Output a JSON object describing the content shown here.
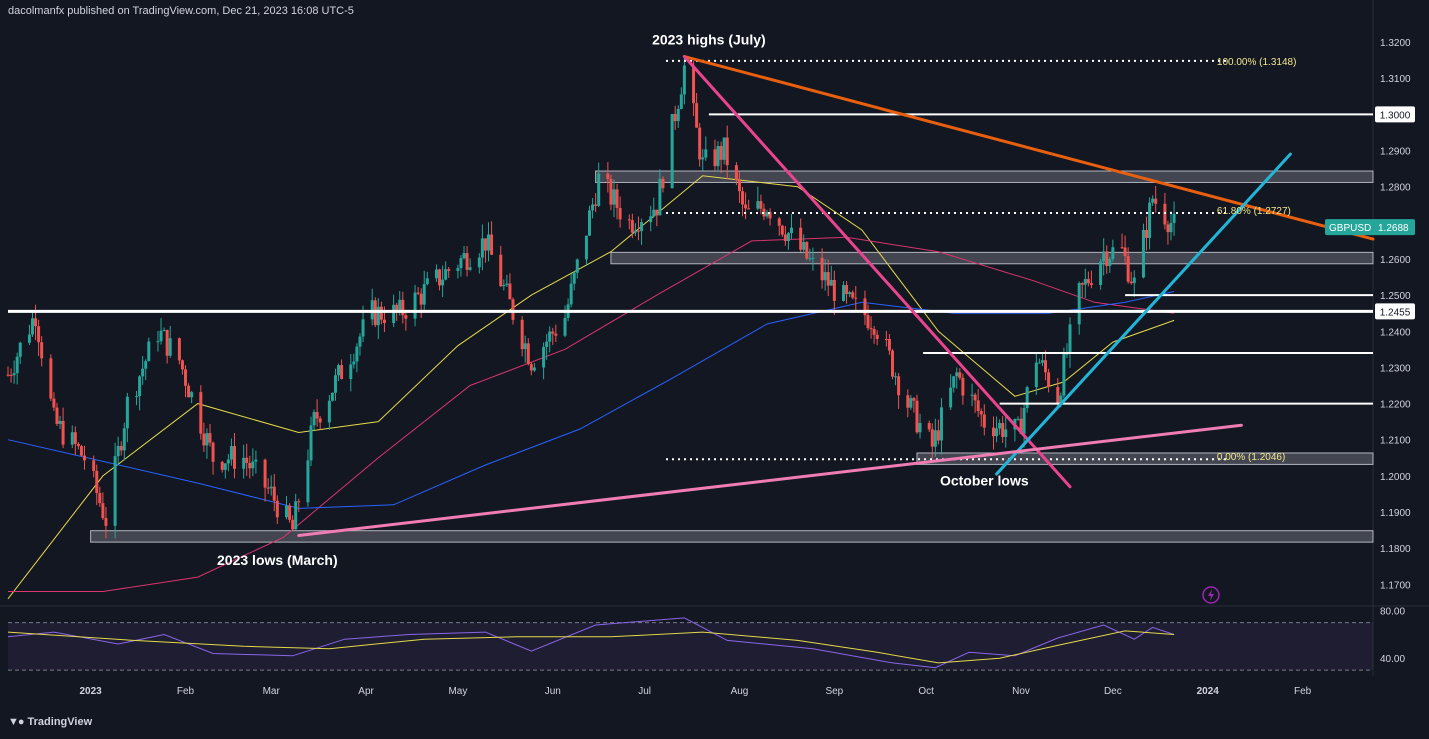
{
  "header": {
    "text": "dacolmanfx published on TradingView.com, Dec 21, 2023 16:08 UTC-5"
  },
  "footer": {
    "logo_text": "TradingView",
    "logo_icon": "tradingview-logo-icon"
  },
  "colors": {
    "background": "#131722",
    "up": "#26a69a",
    "down": "#ef5350",
    "ma50": "#e5d94a",
    "ma100": "#d9356e",
    "ma200": "#2962ff",
    "red_trend": "#e8600f",
    "pink_trend": "#e8458e",
    "blue_trend": "#22b5d8",
    "support_trend": "#f07cb4",
    "rsi": "#8a66e6",
    "rsi_ma": "#e5d94a",
    "fib_text": "#f0e68c"
  },
  "chart_data": {
    "type": "candlestick",
    "symbol": "GBPUSD",
    "last_price": "1.2688",
    "price_axis": {
      "ylim": [
        1.164,
        1.325
      ],
      "ticks": [
        "1.3200",
        "1.3100",
        "1.3000",
        "1.2900",
        "1.2800",
        "1.2700",
        "1.2600",
        "1.2500",
        "1.2455",
        "1.2400",
        "1.2300",
        "1.2200",
        "1.2100",
        "1.2000",
        "1.1900",
        "1.1800",
        "1.1700"
      ]
    },
    "time_axis": {
      "xlim": [
        "2022-12-05",
        "2024-02-24"
      ],
      "ticks": [
        {
          "date": "2023-01-01",
          "label": "2023",
          "bold": true
        },
        {
          "date": "2023-02-01",
          "label": "Feb"
        },
        {
          "date": "2023-03-01",
          "label": "Mar"
        },
        {
          "date": "2023-04-01",
          "label": "Apr"
        },
        {
          "date": "2023-05-01",
          "label": "May"
        },
        {
          "date": "2023-06-01",
          "label": "Jun"
        },
        {
          "date": "2023-07-01",
          "label": "Jul"
        },
        {
          "date": "2023-08-01",
          "label": "Aug"
        },
        {
          "date": "2023-09-01",
          "label": "Sep"
        },
        {
          "date": "2023-10-01",
          "label": "Oct"
        },
        {
          "date": "2023-11-01",
          "label": "Nov"
        },
        {
          "date": "2023-12-01",
          "label": "Dec"
        },
        {
          "date": "2024-01-01",
          "label": "2024",
          "bold": true
        },
        {
          "date": "2024-02-01",
          "label": "Feb"
        }
      ]
    },
    "price_path": [
      [
        "2022-12-05",
        1.228
      ],
      [
        "2022-12-14",
        1.245
      ],
      [
        "2022-12-20",
        1.215
      ],
      [
        "2022-12-30",
        1.205
      ],
      [
        "2023-01-06",
        1.188
      ],
      [
        "2023-01-13",
        1.22
      ],
      [
        "2023-01-23",
        1.24
      ],
      [
        "2023-01-30",
        1.232
      ],
      [
        "2023-02-10",
        1.205
      ],
      [
        "2023-02-20",
        1.205
      ],
      [
        "2023-03-01",
        1.195
      ],
      [
        "2023-03-08",
        1.185
      ],
      [
        "2023-03-15",
        1.215
      ],
      [
        "2023-03-24",
        1.229
      ],
      [
        "2023-04-03",
        1.245
      ],
      [
        "2023-04-12",
        1.245
      ],
      [
        "2023-04-28",
        1.257
      ],
      [
        "2023-05-10",
        1.265
      ],
      [
        "2023-05-25",
        1.232
      ],
      [
        "2023-06-05",
        1.244
      ],
      [
        "2023-06-16",
        1.282
      ],
      [
        "2023-06-26",
        1.27
      ],
      [
        "2023-07-05",
        1.275
      ],
      [
        "2023-07-14",
        1.313
      ],
      [
        "2023-07-20",
        1.286
      ],
      [
        "2023-07-27",
        1.29
      ],
      [
        "2023-08-03",
        1.272
      ],
      [
        "2023-08-10",
        1.275
      ],
      [
        "2023-08-25",
        1.258
      ],
      [
        "2023-09-05",
        1.248
      ],
      [
        "2023-09-14",
        1.243
      ],
      [
        "2023-09-25",
        1.22
      ],
      [
        "2023-10-03",
        1.208
      ],
      [
        "2023-10-11",
        1.228
      ],
      [
        "2023-10-20",
        1.215
      ],
      [
        "2023-10-31",
        1.212
      ],
      [
        "2023-11-06",
        1.233
      ],
      [
        "2023-11-13",
        1.222
      ],
      [
        "2023-11-20",
        1.25
      ],
      [
        "2023-11-28",
        1.262
      ],
      [
        "2023-12-04",
        1.262
      ],
      [
        "2023-12-08",
        1.253
      ],
      [
        "2023-12-14",
        1.277
      ],
      [
        "2023-12-21",
        1.269
      ]
    ],
    "moving_averages": [
      {
        "name": "MA50",
        "color": "#e5d94a",
        "points": [
          [
            "2022-12-05",
            1.166
          ],
          [
            "2023-01-05",
            1.2
          ],
          [
            "2023-02-05",
            1.22
          ],
          [
            "2023-03-10",
            1.212
          ],
          [
            "2023-04-05",
            1.215
          ],
          [
            "2023-05-01",
            1.236
          ],
          [
            "2023-05-25",
            1.25
          ],
          [
            "2023-06-20",
            1.262
          ],
          [
            "2023-07-20",
            1.283
          ],
          [
            "2023-08-20",
            1.28
          ],
          [
            "2023-09-10",
            1.268
          ],
          [
            "2023-10-05",
            1.24
          ],
          [
            "2023-10-30",
            1.222
          ],
          [
            "2023-11-15",
            1.226
          ],
          [
            "2023-12-01",
            1.237
          ],
          [
            "2023-12-21",
            1.243
          ]
        ]
      },
      {
        "name": "MA100",
        "color": "#d9356e",
        "points": [
          [
            "2022-12-05",
            1.168
          ],
          [
            "2023-01-05",
            1.168
          ],
          [
            "2023-02-05",
            1.172
          ],
          [
            "2023-03-05",
            1.183
          ],
          [
            "2023-04-05",
            1.205
          ],
          [
            "2023-05-05",
            1.225
          ],
          [
            "2023-06-05",
            1.235
          ],
          [
            "2023-07-05",
            1.25
          ],
          [
            "2023-08-05",
            1.265
          ],
          [
            "2023-09-05",
            1.266
          ],
          [
            "2023-10-05",
            1.262
          ],
          [
            "2023-11-05",
            1.254
          ],
          [
            "2023-11-25",
            1.248
          ],
          [
            "2023-12-21",
            1.245
          ]
        ]
      },
      {
        "name": "MA200",
        "color": "#2962ff",
        "points": [
          [
            "2022-12-05",
            1.21
          ],
          [
            "2023-01-05",
            1.204
          ],
          [
            "2023-02-05",
            1.198
          ],
          [
            "2023-03-10",
            1.191
          ],
          [
            "2023-04-10",
            1.192
          ],
          [
            "2023-05-10",
            1.203
          ],
          [
            "2023-06-10",
            1.213
          ],
          [
            "2023-07-10",
            1.227
          ],
          [
            "2023-08-10",
            1.242
          ],
          [
            "2023-09-10",
            1.248
          ],
          [
            "2023-10-10",
            1.245
          ],
          [
            "2023-11-10",
            1.245
          ],
          [
            "2023-12-05",
            1.248
          ],
          [
            "2023-12-21",
            1.251
          ]
        ]
      }
    ],
    "horizontal_levels": [
      {
        "price": 1.3,
        "from": "2023-07-22",
        "to": "2024-02-24",
        "style": "solid",
        "color": "#ffffff",
        "label": "1.3000"
      },
      {
        "price": 1.2455,
        "from": "2022-12-05",
        "to": "2024-02-24",
        "style": "bold",
        "color": "#ffffff",
        "label": "1.2455"
      },
      {
        "price": 1.25,
        "from": "2023-12-05",
        "to": "2024-02-24",
        "style": "solid",
        "color": "#ffffff"
      },
      {
        "price": 1.234,
        "from": "2023-09-30",
        "to": "2024-02-24",
        "style": "solid",
        "color": "#ffffff"
      },
      {
        "price": 1.22,
        "from": "2023-10-25",
        "to": "2024-02-24",
        "style": "solid",
        "color": "#ffffff"
      },
      {
        "price": 1.3148,
        "from": "2023-07-08",
        "to": "2024-01-08",
        "style": "dotted",
        "color": "#ffffff"
      },
      {
        "price": 1.2727,
        "from": "2023-07-08",
        "to": "2024-01-08",
        "style": "dotted",
        "color": "#ffffff"
      },
      {
        "price": 1.2046,
        "from": "2023-07-08",
        "to": "2024-01-08",
        "style": "dotted",
        "color": "#ffffff"
      }
    ],
    "zones": [
      {
        "top": 1.2835,
        "bottom": 1.282,
        "from": "2023-06-15",
        "to": "2024-02-24"
      },
      {
        "top": 1.261,
        "bottom": 1.2595,
        "from": "2023-06-20",
        "to": "2024-02-24"
      },
      {
        "top": 1.2055,
        "bottom": 1.204,
        "from": "2023-09-28",
        "to": "2024-02-24"
      },
      {
        "top": 1.184,
        "bottom": 1.1825,
        "from": "2023-01-01",
        "to": "2024-02-24"
      }
    ],
    "trendlines": [
      {
        "name": "resistance",
        "color": "#e8600f",
        "from": [
          "2023-07-14",
          1.316
        ],
        "to": "2024-02-24",
        "to_price": 1.2655
      },
      {
        "name": "summer-downtrend",
        "color": "#e8458e",
        "from": [
          "2023-07-14",
          1.316
        ],
        "to": [
          "2023-11-17",
          1.197
        ]
      },
      {
        "name": "uptrend",
        "color": "#22b5d8",
        "from": [
          "2023-10-24",
          1.2005
        ],
        "to": [
          "2024-01-28",
          1.289
        ]
      },
      {
        "name": "long-support",
        "color": "#f07cb4",
        "from": [
          "2023-03-10",
          1.1835
        ],
        "to": [
          "2024-01-12",
          1.214
        ]
      }
    ],
    "annotations": [
      {
        "text": "2023 highs (July)",
        "date": "2023-07-22",
        "price": 1.3205,
        "bold": true
      },
      {
        "text": "October lows",
        "date": "2023-10-20",
        "price": 1.1985,
        "bold": true
      },
      {
        "text": "2023 lows (March)",
        "date": "2023-03-03",
        "price": 1.1765,
        "bold": true
      },
      {
        "text": "100.00% (1.3148)",
        "date": "2024-01-04",
        "price": 1.3148,
        "fib": true
      },
      {
        "text": "61.80% (1.2727)",
        "date": "2024-01-04",
        "price": 1.2735,
        "fib": true
      },
      {
        "text": "0.00% (1.2046)",
        "date": "2024-01-04",
        "price": 1.2055,
        "fib": true
      }
    ],
    "rsi_panel": {
      "ylim": [
        25,
        84
      ],
      "ticks": [
        "80.00",
        "40.00"
      ],
      "band": [
        70,
        30
      ],
      "rsi": [
        [
          "2022-12-05",
          58
        ],
        [
          "2022-12-20",
          62
        ],
        [
          "2023-01-10",
          52
        ],
        [
          "2023-01-25",
          60
        ],
        [
          "2023-02-10",
          44
        ],
        [
          "2023-03-08",
          42
        ],
        [
          "2023-03-25",
          56
        ],
        [
          "2023-04-15",
          60
        ],
        [
          "2023-05-10",
          62
        ],
        [
          "2023-05-25",
          46
        ],
        [
          "2023-06-15",
          68
        ],
        [
          "2023-07-14",
          74
        ],
        [
          "2023-07-28",
          55
        ],
        [
          "2023-08-25",
          48
        ],
        [
          "2023-09-20",
          36
        ],
        [
          "2023-10-04",
          32
        ],
        [
          "2023-10-15",
          45
        ],
        [
          "2023-10-30",
          42
        ],
        [
          "2023-11-13",
          57
        ],
        [
          "2023-11-28",
          68
        ],
        [
          "2023-12-08",
          56
        ],
        [
          "2023-12-14",
          66
        ],
        [
          "2023-12-21",
          60
        ]
      ],
      "rsi_ma": [
        [
          "2022-12-05",
          62
        ],
        [
          "2023-01-15",
          55
        ],
        [
          "2023-02-20",
          50
        ],
        [
          "2023-03-20",
          48
        ],
        [
          "2023-04-20",
          56
        ],
        [
          "2023-05-20",
          58
        ],
        [
          "2023-06-20",
          58
        ],
        [
          "2023-07-20",
          62
        ],
        [
          "2023-08-20",
          55
        ],
        [
          "2023-09-15",
          45
        ],
        [
          "2023-10-05",
          36
        ],
        [
          "2023-10-25",
          40
        ],
        [
          "2023-11-15",
          52
        ],
        [
          "2023-12-05",
          63
        ],
        [
          "2023-12-21",
          60
        ]
      ]
    }
  }
}
